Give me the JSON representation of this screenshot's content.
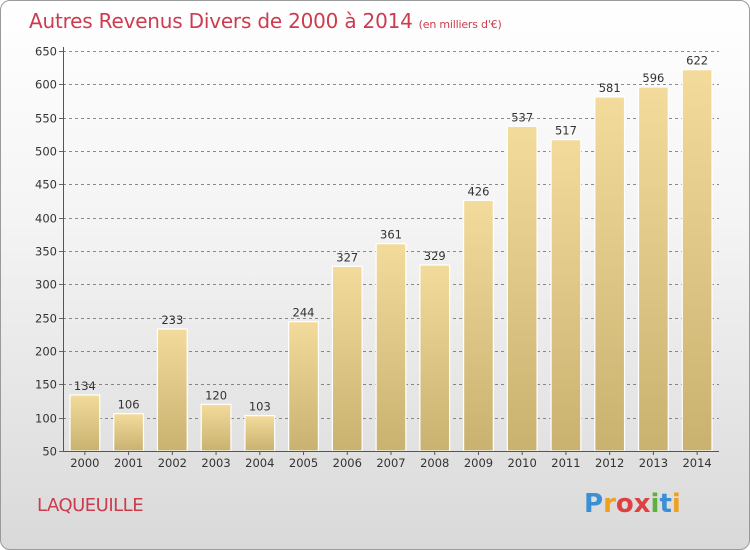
{
  "title": "Autres Revenus Divers de 2000 à 2014",
  "subtitle": "(en milliers d'€)",
  "commune": "LAQUEUILLE",
  "logo": {
    "letters": [
      "P",
      "r",
      "o",
      "x",
      "i",
      "t",
      "i"
    ],
    "colors": [
      "#3b8fd6",
      "#f0a020",
      "#e04040",
      "#e04040",
      "#60b040",
      "#3b8fd6",
      "#f0a020"
    ]
  },
  "colors": {
    "bar_top": "#f3db9c",
    "bar_bottom": "#c9b170",
    "bar_stroke": "#ffffff",
    "grid": "#666666",
    "text": "#333333"
  },
  "chart_data": {
    "type": "bar",
    "categories": [
      "2000",
      "2001",
      "2002",
      "2003",
      "2004",
      "2005",
      "2006",
      "2007",
      "2008",
      "2009",
      "2010",
      "2011",
      "2012",
      "2013",
      "2014"
    ],
    "values": [
      134,
      106,
      233,
      120,
      103,
      244,
      327,
      361,
      329,
      426,
      537,
      517,
      581,
      596,
      622
    ],
    "title": "Autres Revenus Divers de 2000 à 2014",
    "xlabel": "",
    "ylabel": "",
    "ylim": [
      50,
      650
    ],
    "yticks": [
      50,
      100,
      150,
      200,
      250,
      300,
      350,
      400,
      450,
      500,
      550,
      600,
      650
    ],
    "grid": true,
    "data_labels": true
  }
}
